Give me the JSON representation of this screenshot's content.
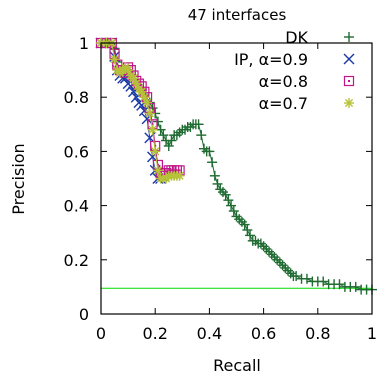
{
  "chart_data": {
    "type": "line",
    "title": "47 interfaces",
    "xlabel": "Recall",
    "ylabel": "Precision",
    "xlim": [
      0,
      1
    ],
    "ylim": [
      0,
      1
    ],
    "xticks": [
      "0",
      "0.2",
      "0.4",
      "0.6",
      "0.8",
      "1"
    ],
    "yticks": [
      "0",
      "0.2",
      "0.4",
      "0.6",
      "0.8",
      "1"
    ],
    "grid": false,
    "legend_position": "top-right",
    "baseline": {
      "y": 0.095,
      "color": "#00dd00"
    },
    "series": [
      {
        "name": "DK",
        "color": "#1f6b32",
        "marker": "plus",
        "points": [
          [
            0.0,
            1.0
          ],
          [
            0.03,
            1.0
          ],
          [
            0.05,
            0.98
          ],
          [
            0.06,
            0.93
          ],
          [
            0.07,
            0.89
          ],
          [
            0.09,
            0.9
          ],
          [
            0.11,
            0.88
          ],
          [
            0.13,
            0.85
          ],
          [
            0.15,
            0.83
          ],
          [
            0.16,
            0.81
          ],
          [
            0.17,
            0.79
          ],
          [
            0.18,
            0.78
          ],
          [
            0.19,
            0.76
          ],
          [
            0.2,
            0.74
          ],
          [
            0.21,
            0.71
          ],
          [
            0.22,
            0.68
          ],
          [
            0.23,
            0.66
          ],
          [
            0.24,
            0.64
          ],
          [
            0.25,
            0.62
          ],
          [
            0.26,
            0.64
          ],
          [
            0.27,
            0.66
          ],
          [
            0.28,
            0.66
          ],
          [
            0.29,
            0.67
          ],
          [
            0.3,
            0.68
          ],
          [
            0.31,
            0.68
          ],
          [
            0.32,
            0.69
          ],
          [
            0.33,
            0.69
          ],
          [
            0.34,
            0.7
          ],
          [
            0.35,
            0.7
          ],
          [
            0.36,
            0.7
          ],
          [
            0.37,
            0.66
          ],
          [
            0.38,
            0.61
          ],
          [
            0.39,
            0.6
          ],
          [
            0.4,
            0.6
          ],
          [
            0.41,
            0.56
          ],
          [
            0.42,
            0.51
          ],
          [
            0.43,
            0.48
          ],
          [
            0.44,
            0.46
          ],
          [
            0.45,
            0.45
          ],
          [
            0.46,
            0.44
          ],
          [
            0.47,
            0.42
          ],
          [
            0.48,
            0.4
          ],
          [
            0.49,
            0.38
          ],
          [
            0.5,
            0.36
          ],
          [
            0.51,
            0.35
          ],
          [
            0.52,
            0.34
          ],
          [
            0.53,
            0.33
          ],
          [
            0.54,
            0.31
          ],
          [
            0.55,
            0.29
          ],
          [
            0.56,
            0.27
          ],
          [
            0.57,
            0.27
          ],
          [
            0.58,
            0.26
          ],
          [
            0.59,
            0.26
          ],
          [
            0.6,
            0.25
          ],
          [
            0.61,
            0.24
          ],
          [
            0.62,
            0.23
          ],
          [
            0.63,
            0.22
          ],
          [
            0.64,
            0.21
          ],
          [
            0.65,
            0.2
          ],
          [
            0.66,
            0.19
          ],
          [
            0.67,
            0.18
          ],
          [
            0.68,
            0.17
          ],
          [
            0.69,
            0.16
          ],
          [
            0.7,
            0.15
          ],
          [
            0.71,
            0.14
          ],
          [
            0.72,
            0.14
          ],
          [
            0.74,
            0.13
          ],
          [
            0.76,
            0.13
          ],
          [
            0.78,
            0.12
          ],
          [
            0.8,
            0.12
          ],
          [
            0.82,
            0.12
          ],
          [
            0.84,
            0.11
          ],
          [
            0.86,
            0.11
          ],
          [
            0.88,
            0.11
          ],
          [
            0.9,
            0.1
          ],
          [
            0.92,
            0.1
          ],
          [
            0.94,
            0.1
          ],
          [
            0.96,
            0.09
          ],
          [
            0.98,
            0.09
          ],
          [
            1.0,
            0.09
          ]
        ]
      },
      {
        "name": "IP, α=0.9",
        "color": "#1a3aa8",
        "marker": "x",
        "points": [
          [
            0.0,
            1.0
          ],
          [
            0.02,
            1.0
          ],
          [
            0.04,
            1.0
          ],
          [
            0.05,
            0.95
          ],
          [
            0.06,
            0.9
          ],
          [
            0.07,
            0.88
          ],
          [
            0.08,
            0.87
          ],
          [
            0.09,
            0.87
          ],
          [
            0.1,
            0.85
          ],
          [
            0.11,
            0.84
          ],
          [
            0.12,
            0.82
          ],
          [
            0.13,
            0.8
          ],
          [
            0.14,
            0.78
          ],
          [
            0.15,
            0.77
          ],
          [
            0.16,
            0.75
          ],
          [
            0.17,
            0.72
          ],
          [
            0.18,
            0.65
          ],
          [
            0.19,
            0.58
          ],
          [
            0.2,
            0.53
          ],
          [
            0.21,
            0.5
          ],
          [
            0.22,
            0.5
          ],
          [
            0.23,
            0.51
          ]
        ]
      },
      {
        "name": "α=0.8",
        "color": "#c0168a",
        "marker": "square",
        "points": [
          [
            0.0,
            1.0
          ],
          [
            0.02,
            1.0
          ],
          [
            0.04,
            1.0
          ],
          [
            0.05,
            0.96
          ],
          [
            0.06,
            0.92
          ],
          [
            0.07,
            0.9
          ],
          [
            0.08,
            0.9
          ],
          [
            0.09,
            0.89
          ],
          [
            0.1,
            0.91
          ],
          [
            0.11,
            0.9
          ],
          [
            0.12,
            0.88
          ],
          [
            0.13,
            0.86
          ],
          [
            0.14,
            0.85
          ],
          [
            0.15,
            0.84
          ],
          [
            0.16,
            0.82
          ],
          [
            0.17,
            0.8
          ],
          [
            0.18,
            0.76
          ],
          [
            0.19,
            0.7
          ],
          [
            0.2,
            0.62
          ],
          [
            0.21,
            0.55
          ],
          [
            0.22,
            0.52
          ],
          [
            0.23,
            0.51
          ],
          [
            0.24,
            0.52
          ],
          [
            0.25,
            0.53
          ],
          [
            0.26,
            0.53
          ],
          [
            0.27,
            0.53
          ],
          [
            0.28,
            0.53
          ],
          [
            0.29,
            0.53
          ]
        ]
      },
      {
        "name": "α=0.7",
        "color": "#b6c238",
        "marker": "star",
        "points": [
          [
            0.0,
            1.0
          ],
          [
            0.02,
            1.0
          ],
          [
            0.04,
            1.0
          ],
          [
            0.05,
            0.94
          ],
          [
            0.06,
            0.9
          ],
          [
            0.07,
            0.89
          ],
          [
            0.08,
            0.9
          ],
          [
            0.09,
            0.91
          ],
          [
            0.1,
            0.9
          ],
          [
            0.11,
            0.88
          ],
          [
            0.12,
            0.87
          ],
          [
            0.13,
            0.85
          ],
          [
            0.14,
            0.83
          ],
          [
            0.15,
            0.82
          ],
          [
            0.16,
            0.8
          ],
          [
            0.17,
            0.78
          ],
          [
            0.18,
            0.74
          ],
          [
            0.19,
            0.68
          ],
          [
            0.2,
            0.6
          ],
          [
            0.21,
            0.53
          ],
          [
            0.22,
            0.5
          ],
          [
            0.23,
            0.5
          ],
          [
            0.24,
            0.5
          ],
          [
            0.25,
            0.51
          ],
          [
            0.26,
            0.51
          ],
          [
            0.27,
            0.51
          ],
          [
            0.28,
            0.51
          ],
          [
            0.29,
            0.51
          ]
        ]
      }
    ]
  }
}
